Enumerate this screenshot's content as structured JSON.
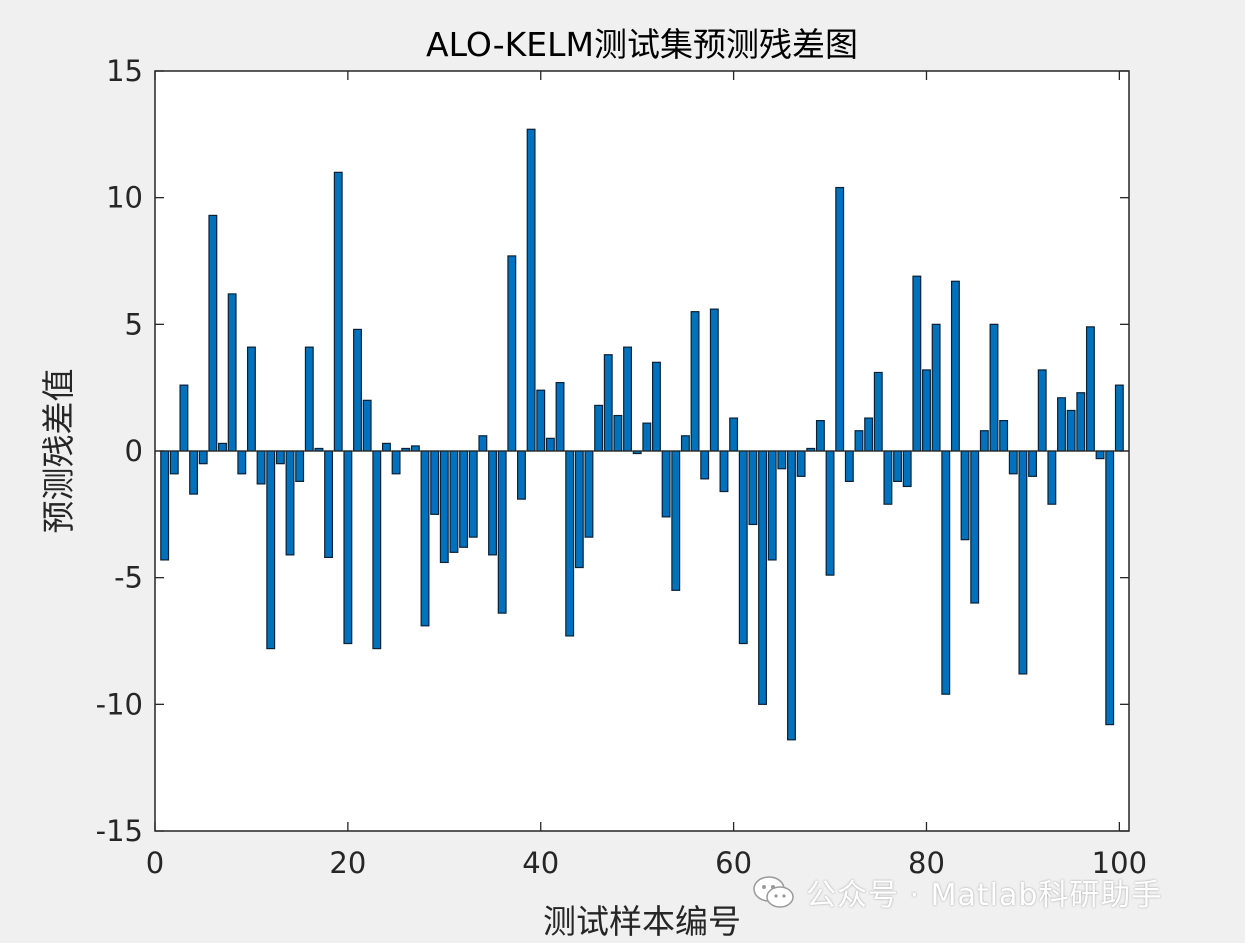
{
  "chart_data": {
    "type": "bar",
    "title": "ALO-KELM测试集预测残差图",
    "xlabel": "测试样本编号",
    "ylabel": "预测残差值",
    "xlim": [
      0,
      101
    ],
    "ylim": [
      -15,
      15
    ],
    "xticks": [
      0,
      20,
      40,
      60,
      80,
      100
    ],
    "yticks": [
      -15,
      -10,
      -5,
      0,
      5,
      10,
      15
    ],
    "grid": false,
    "bar_color": "#0072BD",
    "x": [
      1,
      2,
      3,
      4,
      5,
      6,
      7,
      8,
      9,
      10,
      11,
      12,
      13,
      14,
      15,
      16,
      17,
      18,
      19,
      20,
      21,
      22,
      23,
      24,
      25,
      26,
      27,
      28,
      29,
      30,
      31,
      32,
      33,
      34,
      35,
      36,
      37,
      38,
      39,
      40,
      41,
      42,
      43,
      44,
      45,
      46,
      47,
      48,
      49,
      50,
      51,
      52,
      53,
      54,
      55,
      56,
      57,
      58,
      59,
      60,
      61,
      62,
      63,
      64,
      65,
      66,
      67,
      68,
      69,
      70,
      71,
      72,
      73,
      74,
      75,
      76,
      77,
      78,
      79,
      80,
      81,
      82,
      83,
      84,
      85,
      86,
      87,
      88,
      89,
      90,
      91,
      92,
      93,
      94,
      95,
      96,
      97,
      98,
      99,
      100
    ],
    "values": [
      -4.3,
      -0.9,
      2.6,
      -1.7,
      -0.5,
      9.3,
      0.3,
      6.2,
      -0.9,
      4.1,
      -1.3,
      -7.8,
      -0.5,
      -4.1,
      -1.2,
      4.1,
      0.1,
      -4.2,
      11.0,
      -7.6,
      4.8,
      2.0,
      -7.8,
      0.3,
      -0.9,
      0.1,
      0.2,
      -6.9,
      -2.5,
      -4.4,
      -4.0,
      -3.8,
      -3.4,
      0.6,
      -4.1,
      -6.4,
      7.7,
      -1.9,
      12.7,
      2.4,
      0.5,
      2.7,
      -7.3,
      -4.6,
      -3.4,
      1.8,
      3.8,
      1.4,
      4.1,
      -0.1,
      1.1,
      3.5,
      -2.6,
      -5.5,
      0.6,
      5.5,
      -1.1,
      5.6,
      -1.6,
      1.3,
      -7.6,
      -2.9,
      -10.0,
      -4.3,
      -0.7,
      -11.4,
      -1.0,
      0.1,
      1.2,
      -4.9,
      10.4,
      -1.2,
      0.8,
      1.3,
      3.1,
      -2.1,
      -1.2,
      -1.4,
      6.9,
      3.2,
      5.0,
      -9.6,
      6.7,
      -3.5,
      -6.0,
      0.8,
      5.0,
      1.2,
      -0.9,
      -8.8,
      -1.0,
      3.2,
      -2.1,
      2.1,
      1.6,
      2.3,
      4.9,
      -0.3,
      -10.8,
      2.6
    ]
  },
  "watermark": {
    "text": "公众号 · Matlab科研助手",
    "icon": "wechat-icon"
  }
}
